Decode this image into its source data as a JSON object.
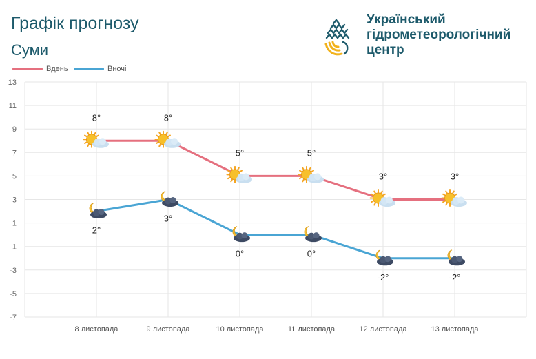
{
  "header": {
    "title": "Графік прогнозу",
    "city": "Суми"
  },
  "logo": {
    "line1": "Український",
    "line2": "гідрометеорологічний",
    "line3": "центр",
    "colors": {
      "dark": "#1d5a6b",
      "accent": "#f2b21b"
    }
  },
  "legend": {
    "day_label": "Вдень",
    "night_label": "Вночі"
  },
  "colors": {
    "day": "#e5707f",
    "night": "#4aa5d4",
    "grid": "#e6e6e6",
    "axis_text": "#666666"
  },
  "chart_data": {
    "type": "line",
    "categories": [
      "8 листопада",
      "9 листопада",
      "10 листопада",
      "11 листопада",
      "12 листопада",
      "13 листопада"
    ],
    "series": [
      {
        "name": "Вдень",
        "values": [
          8,
          8,
          5,
          5,
          3,
          3
        ],
        "labels": [
          "8°",
          "8°",
          "5°",
          "5°",
          "3°",
          "3°"
        ],
        "icon": "sun-cloud-icon"
      },
      {
        "name": "Вночі",
        "values": [
          2,
          3,
          0,
          0,
          -2,
          -2
        ],
        "labels": [
          "2°",
          "3°",
          "0°",
          "0°",
          "-2°",
          "-2°"
        ],
        "icon": "moon-cloud-icon"
      }
    ],
    "yticks": [
      "13",
      "11",
      "9",
      "7",
      "5",
      "3",
      "1",
      "-1",
      "-3",
      "-5",
      "-7"
    ],
    "ylim": [
      -7,
      13
    ],
    "grid": true,
    "legend_position": "top-left"
  }
}
